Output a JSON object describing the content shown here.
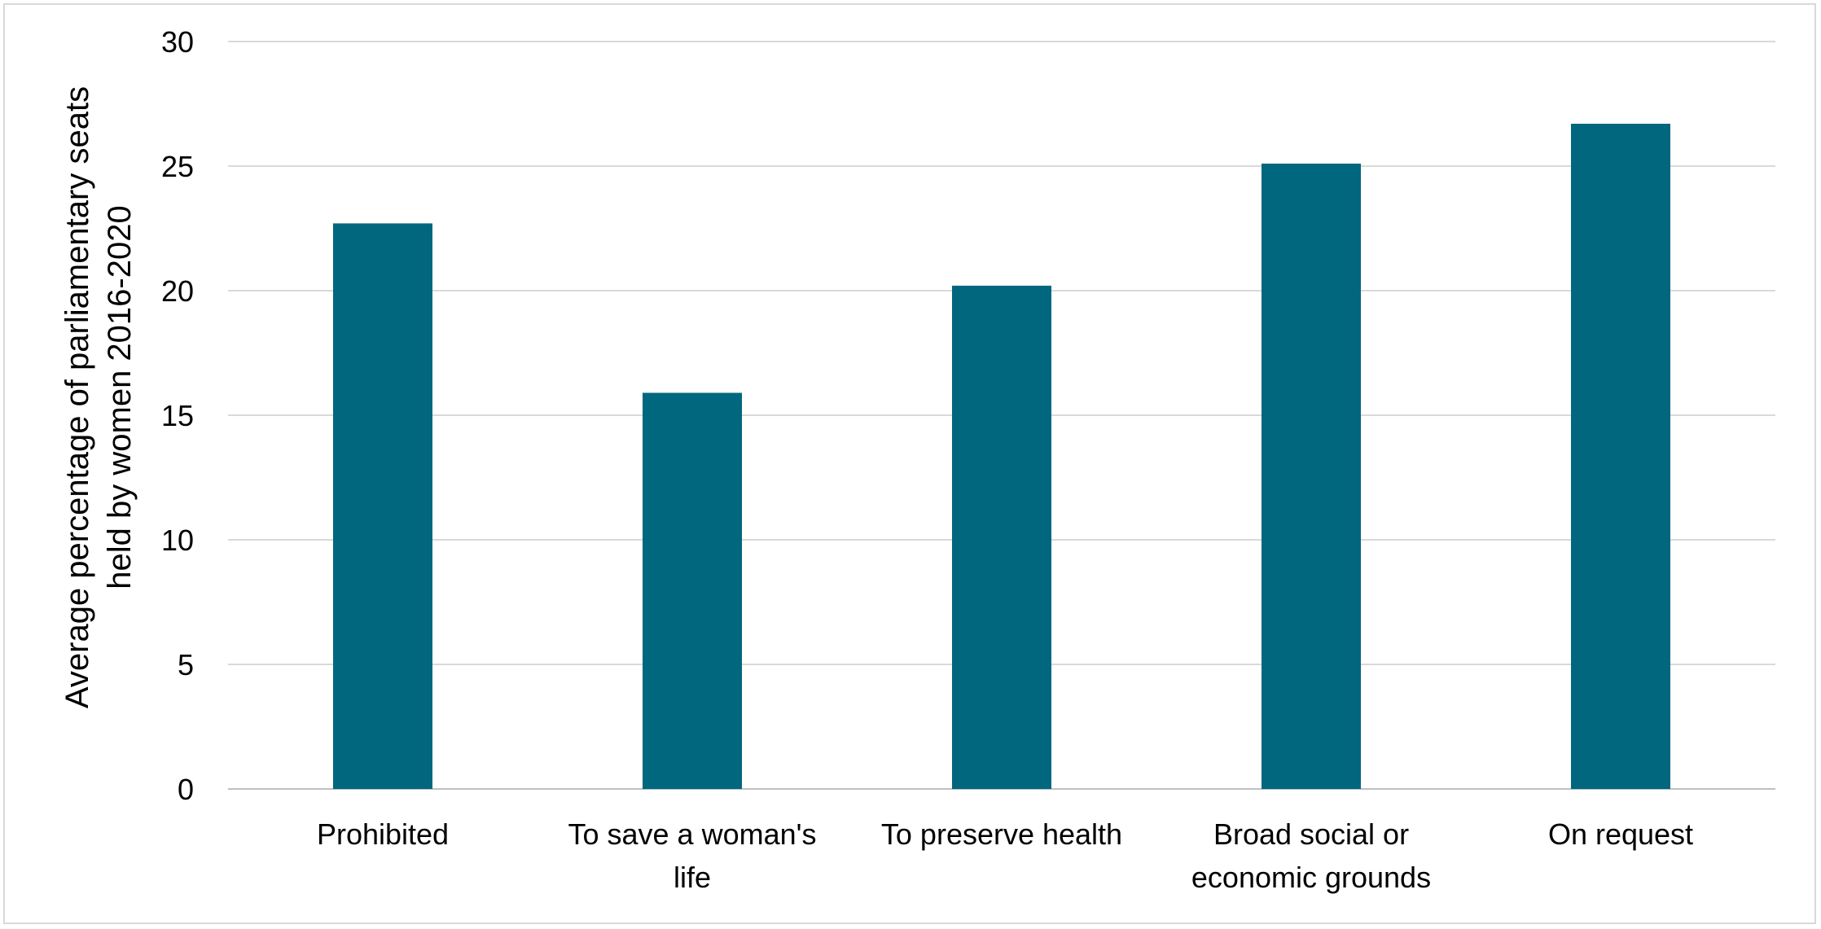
{
  "chart_data": {
    "type": "bar",
    "categories": [
      [
        "Prohibited"
      ],
      [
        "To save a woman's",
        "life"
      ],
      [
        "To preserve health"
      ],
      [
        "Broad social or",
        "economic grounds"
      ],
      [
        "On request"
      ]
    ],
    "values": [
      22.7,
      15.9,
      20.2,
      25.1,
      26.7
    ],
    "title": "",
    "xlabel": "",
    "ylabel": [
      "Average percentage of parliamentary seats",
      "held by women 2016-2020"
    ],
    "ylim": [
      0,
      30
    ],
    "yticks": [
      0,
      5,
      10,
      15,
      20,
      25,
      30
    ],
    "grid": true,
    "legend": "none",
    "colors": {
      "bar": "#00677F",
      "grid": "#D9D9D9",
      "axis": "#BFBFBF"
    }
  }
}
